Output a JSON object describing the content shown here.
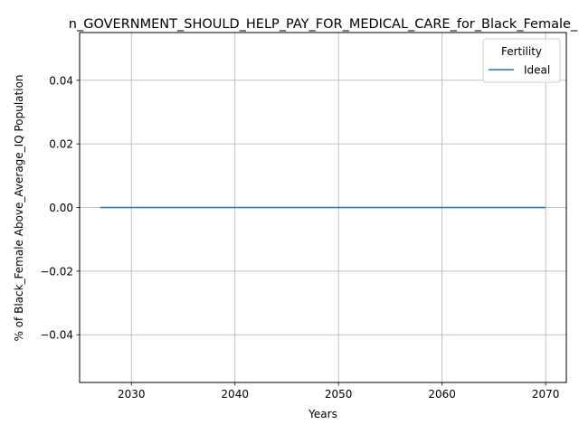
{
  "chart_data": {
    "type": "line",
    "title": "n_GOVERNMENT_SHOULD_HELP_PAY_FOR_MEDICAL_CARE_for_Black_Female_",
    "xlabel": "Years",
    "ylabel": "% of Black_Female Above_Average_IQ Population",
    "xlim": [
      2025,
      2072
    ],
    "ylim": [
      -0.055,
      0.055
    ],
    "xticks": [
      2030,
      2040,
      2050,
      2060,
      2070
    ],
    "xtick_labels": [
      "2030",
      "2040",
      "2050",
      "2060",
      "2070"
    ],
    "yticks": [
      -0.04,
      -0.02,
      0.0,
      0.02,
      0.04
    ],
    "ytick_labels": [
      "−0.04",
      "−0.02",
      "0.00",
      "0.02",
      "0.04"
    ],
    "grid": true,
    "legend": {
      "title": "Fertility",
      "placement": "top-right"
    },
    "series": [
      {
        "name": "Ideal",
        "color": "#1f77b4",
        "x": [
          2027,
          2070
        ],
        "y": [
          0.0,
          0.0
        ]
      }
    ]
  }
}
